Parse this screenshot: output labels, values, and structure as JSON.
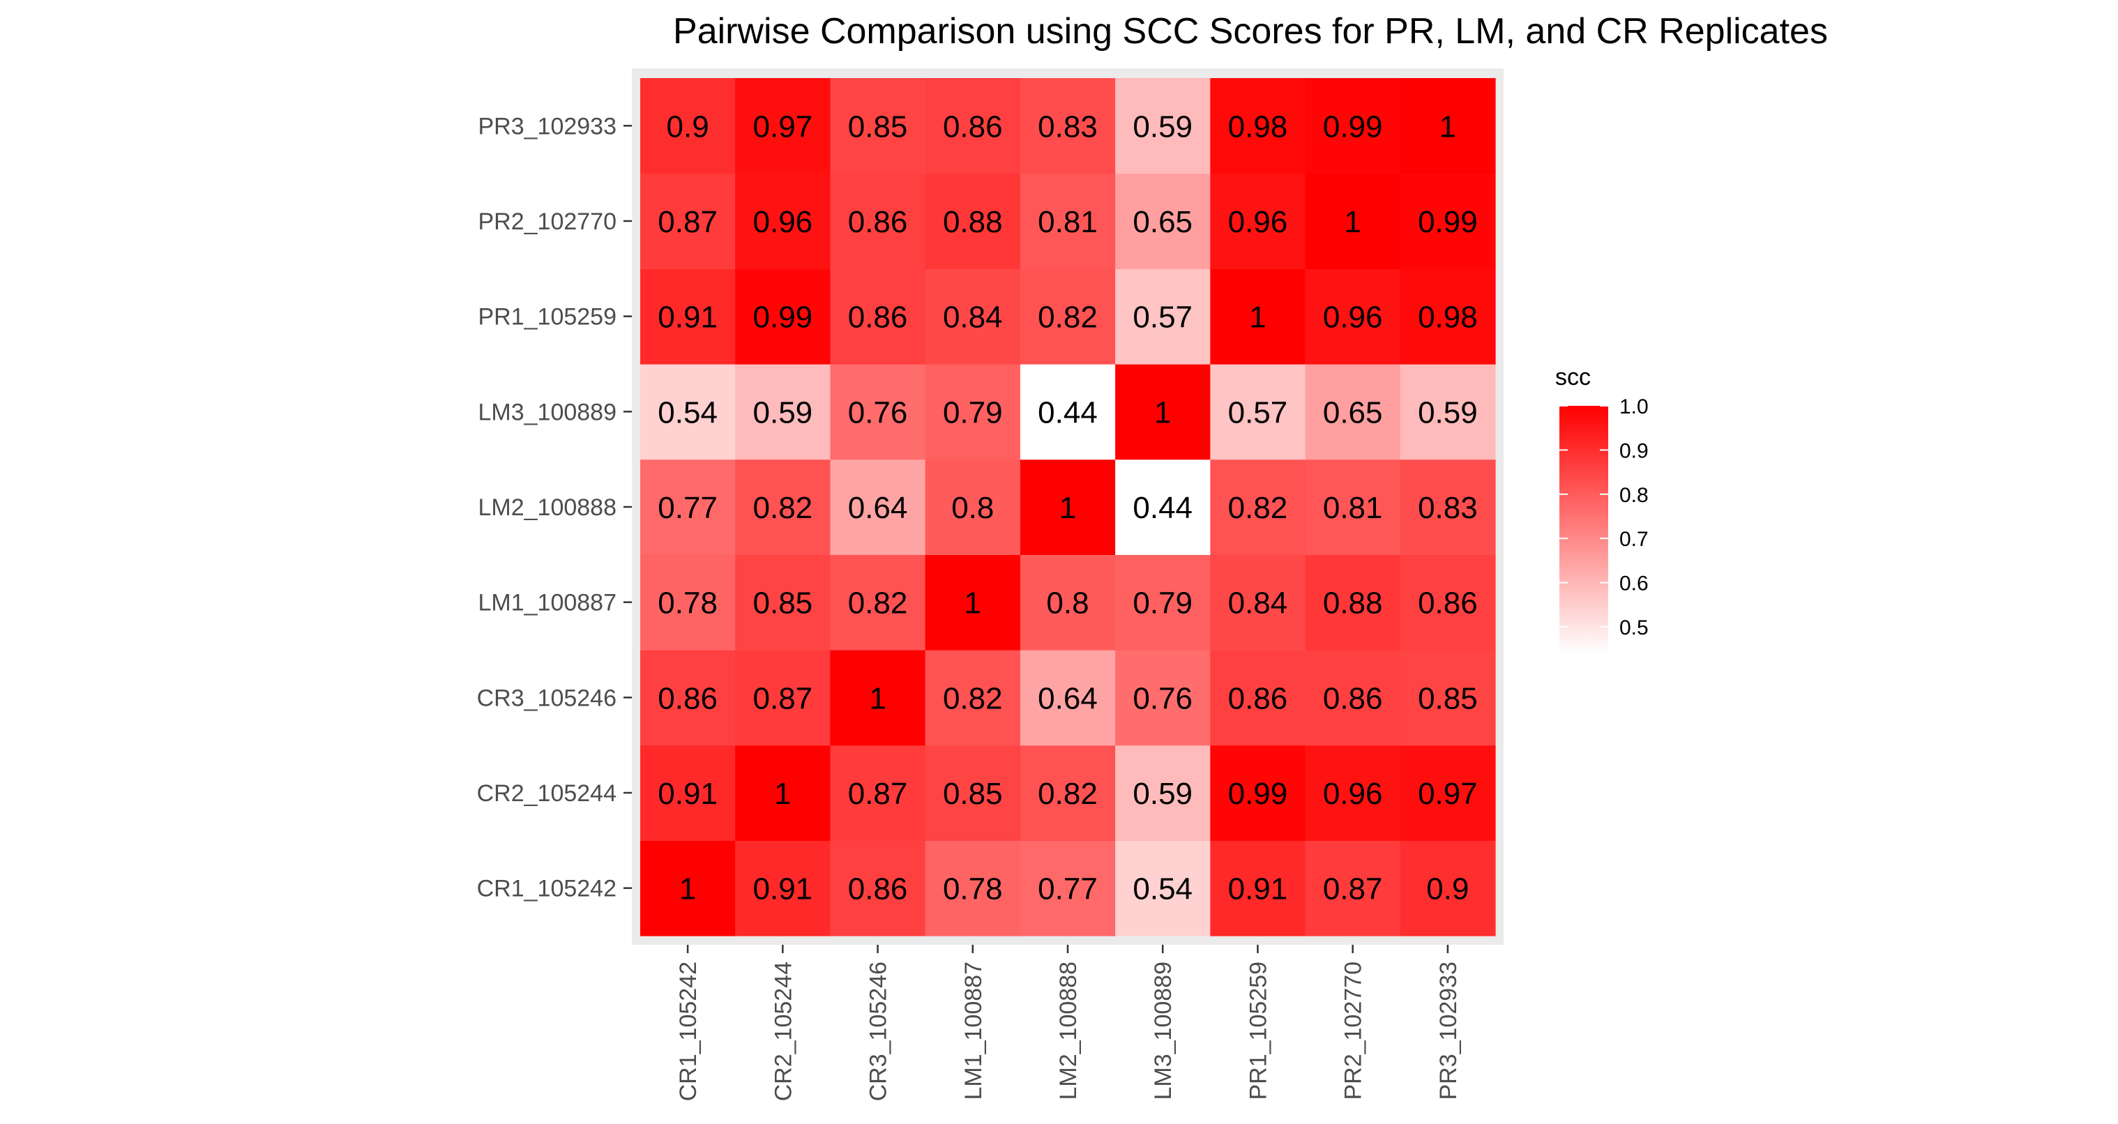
{
  "chart_data": {
    "type": "heatmap",
    "title": "Pairwise Comparison using SCC Scores for PR, LM, and CR Replicates",
    "xlabel": "",
    "ylabel": "",
    "x_categories": [
      "CR1_105242",
      "CR2_105244",
      "CR3_105246",
      "LM1_100887",
      "LM2_100888",
      "LM3_100889",
      "PR1_105259",
      "PR2_102770",
      "PR3_102933"
    ],
    "y_categories": [
      "CR1_105242",
      "CR2_105244",
      "CR3_105246",
      "LM1_100887",
      "LM2_100888",
      "LM3_100889",
      "PR1_105259",
      "PR2_102770",
      "PR3_102933"
    ],
    "values": [
      [
        "1",
        "0.91",
        "0.86",
        "0.78",
        "0.77",
        "0.54",
        "0.91",
        "0.87",
        "0.9"
      ],
      [
        "0.91",
        "1",
        "0.87",
        "0.85",
        "0.82",
        "0.59",
        "0.99",
        "0.96",
        "0.97"
      ],
      [
        "0.86",
        "0.87",
        "1",
        "0.82",
        "0.64",
        "0.76",
        "0.86",
        "0.86",
        "0.85"
      ],
      [
        "0.78",
        "0.85",
        "0.82",
        "1",
        "0.8",
        "0.79",
        "0.84",
        "0.88",
        "0.86"
      ],
      [
        "0.77",
        "0.82",
        "0.64",
        "0.8",
        "1",
        "0.44",
        "0.82",
        "0.81",
        "0.83"
      ],
      [
        "0.54",
        "0.59",
        "0.76",
        "0.79",
        "0.44",
        "1",
        "0.57",
        "0.65",
        "0.59"
      ],
      [
        "0.91",
        "0.99",
        "0.86",
        "0.84",
        "0.82",
        "0.57",
        "1",
        "0.96",
        "0.98"
      ],
      [
        "0.87",
        "0.96",
        "0.86",
        "0.88",
        "0.81",
        "0.65",
        "0.96",
        "1",
        "0.99"
      ],
      [
        "0.9",
        "0.97",
        "0.85",
        "0.86",
        "0.83",
        "0.59",
        "0.98",
        "0.99",
        "1"
      ]
    ],
    "color_scale": {
      "low": "#ffffff",
      "high": "#ff0000",
      "min": 0.44,
      "max": 1.0
    },
    "legend": {
      "title": "scc",
      "ticks": [
        "1.0",
        "0.9",
        "0.8",
        "0.7",
        "0.6",
        "0.5"
      ],
      "placement": "right"
    },
    "panel_background": "#ebebeb",
    "grid": false
  }
}
